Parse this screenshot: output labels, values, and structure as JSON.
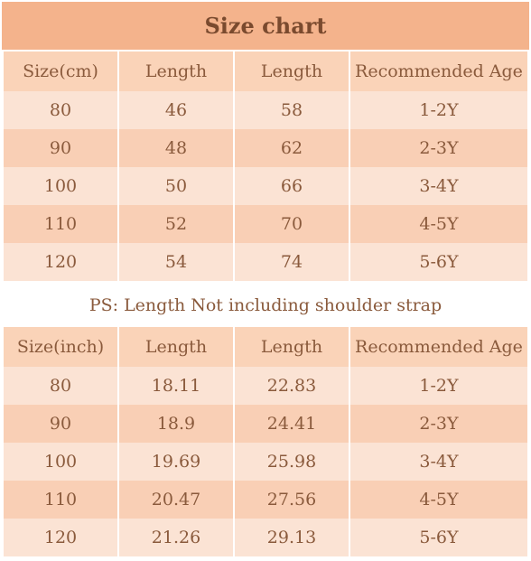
{
  "title": "Size chart",
  "cm_table": {
    "headers": [
      "Size(cm)",
      "Length",
      "Length",
      "Recommended Age"
    ],
    "rows": [
      [
        "80",
        "46",
        "58",
        "1-2Y"
      ],
      [
        "90",
        "48",
        "62",
        "2-3Y"
      ],
      [
        "100",
        "50",
        "66",
        "3-4Y"
      ],
      [
        "110",
        "52",
        "70",
        "4-5Y"
      ],
      [
        "120",
        "54",
        "74",
        "5-6Y"
      ]
    ]
  },
  "note": "PS: Length Not including shoulder strap",
  "inch_table": {
    "headers": [
      "Size(inch)",
      "Length",
      "Length",
      "Recommended Age"
    ],
    "rows": [
      [
        "80",
        "18.11",
        "22.83",
        "1-2Y"
      ],
      [
        "90",
        "18.9",
        "24.41",
        "2-3Y"
      ],
      [
        "100",
        "19.69",
        "25.98",
        "3-4Y"
      ],
      [
        "110",
        "20.47",
        "27.56",
        "4-5Y"
      ],
      [
        "120",
        "21.26",
        "29.13",
        "5-6Y"
      ]
    ]
  }
}
